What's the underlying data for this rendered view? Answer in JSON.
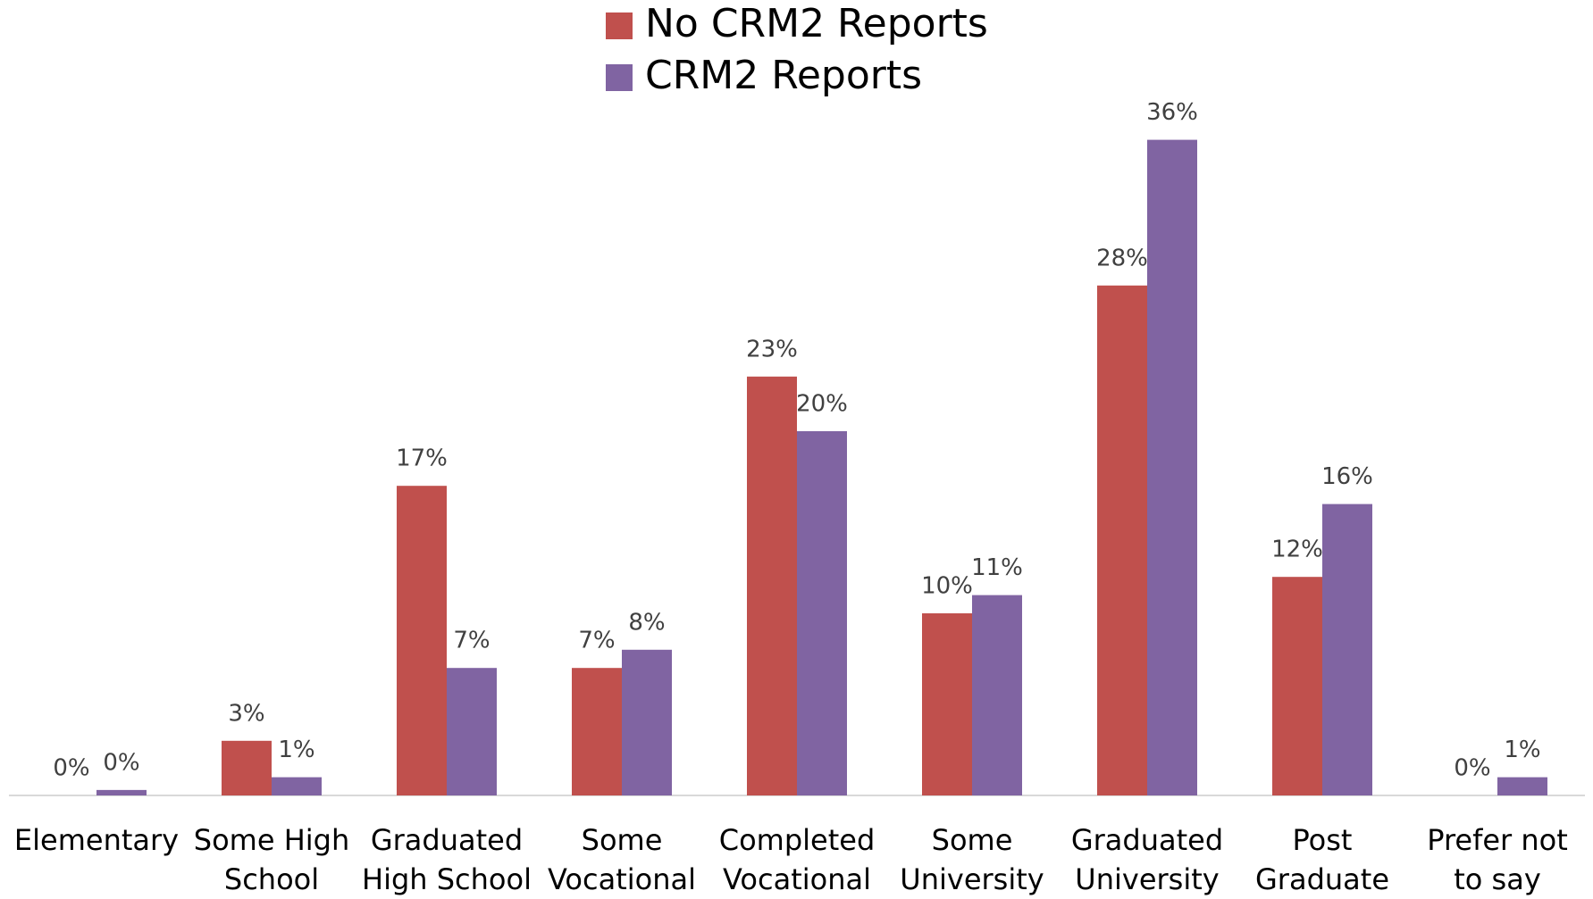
{
  "chart_data": {
    "type": "bar",
    "categories": [
      "Elementary",
      "Some High School",
      "Graduated High School",
      "Some Vocational",
      "Completed Vocational",
      "Some University",
      "Graduated University",
      "Post Graduate",
      "Prefer not to say"
    ],
    "series": [
      {
        "name": "No CRM2 Reports",
        "color": "#c0504d",
        "values": [
          0,
          3,
          17,
          7,
          23,
          10,
          28,
          12,
          0
        ],
        "value_labels": [
          "0%",
          "3%",
          "17%",
          "7%",
          "23%",
          "10%",
          "28%",
          "12%",
          "0%"
        ]
      },
      {
        "name": "CRM2 Reports",
        "color": "#8064a2",
        "values": [
          0.3,
          1,
          7,
          8,
          20,
          11,
          36,
          16,
          1
        ],
        "value_labels": [
          "0%",
          "1%",
          "7%",
          "8%",
          "20%",
          "11%",
          "36%",
          "16%",
          "1%"
        ]
      }
    ],
    "ylim": [
      0,
      40
    ],
    "legend": "top"
  }
}
